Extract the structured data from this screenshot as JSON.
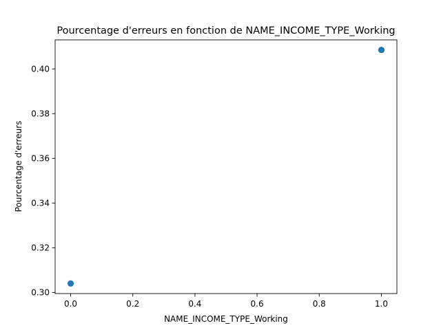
{
  "chart_data": {
    "type": "scatter",
    "title": "Pourcentage d'erreurs en fonction de NAME_INCOME_TYPE_Working",
    "xlabel": "NAME_INCOME_TYPE_Working",
    "ylabel": "Pourcentage d'erreurs",
    "xlim": [
      -0.05,
      1.05
    ],
    "ylim": [
      0.2995,
      0.413
    ],
    "xticks": [
      0.0,
      0.2,
      0.4,
      0.6,
      0.8,
      1.0
    ],
    "xtick_labels": [
      "0.0",
      "0.2",
      "0.4",
      "0.6",
      "0.8",
      "1.0"
    ],
    "yticks": [
      0.3,
      0.32,
      0.34,
      0.36,
      0.38,
      0.4
    ],
    "ytick_labels": [
      "0.30",
      "0.32",
      "0.34",
      "0.36",
      "0.38",
      "0.40"
    ],
    "grid": false,
    "marker_color": "#1f77b4",
    "points": [
      {
        "x": 0.0,
        "y": 0.304
      },
      {
        "x": 1.0,
        "y": 0.4085
      }
    ]
  }
}
